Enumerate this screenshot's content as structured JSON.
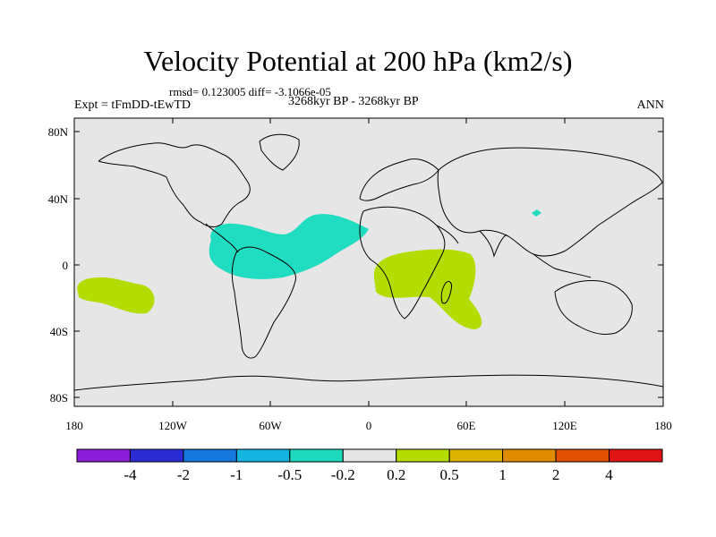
{
  "title": "Velocity Potential at 200 hPa (km2/s)",
  "stats": "rmsd= 0.123005 diff= -3.1066e-05",
  "left_label": "Expt = tFmDD-tEwTD",
  "center_label": "3268kyr BP - 3268kyr BP",
  "right_label": "ANN",
  "colors": {
    "background": "#e6e6e6",
    "negative_anomaly": "#20dcc0",
    "positive_anomaly": "#b4dc00",
    "coast": "#000000"
  },
  "lat_labels": [
    "80N",
    "40N",
    "0",
    "40S",
    "80S"
  ],
  "lon_labels": [
    "180",
    "120W",
    "60W",
    "0",
    "60E",
    "120E",
    "180"
  ],
  "colorbar": {
    "colors": [
      "#8a1ed8",
      "#2c2cd4",
      "#1478dc",
      "#14b4e0",
      "#1ed9bd",
      "#e6e6e6",
      "#b4dc00",
      "#dcb400",
      "#e08c00",
      "#e05000",
      "#e01414"
    ],
    "labels": [
      "-4",
      "-2",
      "-1",
      "-0.5",
      "-0.2",
      "0.2",
      "0.5",
      "1",
      "2",
      "4"
    ]
  }
}
